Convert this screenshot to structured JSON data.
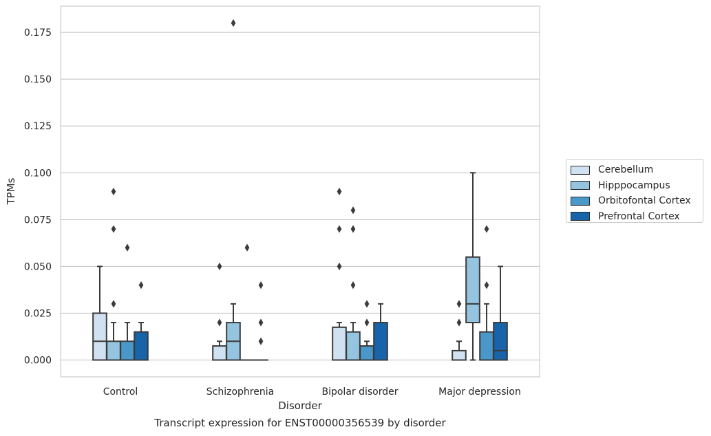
{
  "chart_data": {
    "type": "box",
    "xlabel": "Disorder",
    "ylabel": "TPMs",
    "caption": "Transcript expression for ENST00000356539 by disorder",
    "categories": [
      "Control",
      "Schizophrenia",
      "Bipolar disorder",
      "Major depression"
    ],
    "ylim": [
      -0.009,
      0.189
    ],
    "yticks": [
      "0.000",
      "0.025",
      "0.050",
      "0.075",
      "0.100",
      "0.125",
      "0.150",
      "0.175"
    ],
    "grid": "horizontal",
    "legend_placement": "right",
    "series": [
      {
        "name": "Cerebellum",
        "color": "#d0e1f2",
        "boxes": [
          {
            "category": "Control",
            "whislo": 0.0,
            "q1": 0.0,
            "median": 0.01,
            "q3": 0.025,
            "whishi": 0.05,
            "fliers": []
          },
          {
            "category": "Schizophrenia",
            "whislo": 0.0,
            "q1": 0.0,
            "median": 0.0,
            "q3": 0.0075,
            "whishi": 0.01,
            "fliers": [
              0.02,
              0.05
            ]
          },
          {
            "category": "Bipolar disorder",
            "whislo": 0.0,
            "q1": 0.0,
            "median": 0.0,
            "q3": 0.0175,
            "whishi": 0.02,
            "fliers": [
              0.05,
              0.07,
              0.09
            ]
          },
          {
            "category": "Major depression",
            "whislo": 0.0,
            "q1": 0.0,
            "median": 0.0,
            "q3": 0.005,
            "whishi": 0.01,
            "fliers": [
              0.02,
              0.03
            ]
          }
        ]
      },
      {
        "name": "Hipppocampus",
        "color": "#94c4df",
        "boxes": [
          {
            "category": "Control",
            "whislo": 0.0,
            "q1": 0.0,
            "median": 0.0,
            "q3": 0.01,
            "whishi": 0.02,
            "fliers": [
              0.03,
              0.07,
              0.09
            ]
          },
          {
            "category": "Schizophrenia",
            "whislo": 0.0,
            "q1": 0.0,
            "median": 0.01,
            "q3": 0.02,
            "whishi": 0.03,
            "fliers": [
              0.18
            ]
          },
          {
            "category": "Bipolar disorder",
            "whislo": 0.0,
            "q1": 0.0,
            "median": 0.0,
            "q3": 0.015,
            "whishi": 0.02,
            "fliers": [
              0.04,
              0.07,
              0.08
            ]
          },
          {
            "category": "Major depression",
            "whislo": 0.0,
            "q1": 0.02,
            "median": 0.03,
            "q3": 0.055,
            "whishi": 0.1,
            "fliers": []
          }
        ]
      },
      {
        "name": "Orbitofontal Cortex",
        "color": "#4a98c9",
        "boxes": [
          {
            "category": "Control",
            "whislo": 0.0,
            "q1": 0.0,
            "median": 0.0,
            "q3": 0.01,
            "whishi": 0.02,
            "fliers": [
              0.06
            ]
          },
          {
            "category": "Schizophrenia",
            "whislo": 0.0,
            "q1": 0.0,
            "median": 0.0,
            "q3": 0.0,
            "whishi": 0.0,
            "fliers": [
              0.06
            ]
          },
          {
            "category": "Bipolar disorder",
            "whislo": 0.0,
            "q1": 0.0,
            "median": 0.0,
            "q3": 0.0075,
            "whishi": 0.01,
            "fliers": [
              0.02,
              0.03
            ]
          },
          {
            "category": "Major depression",
            "whislo": 0.0,
            "q1": 0.0,
            "median": 0.0,
            "q3": 0.015,
            "whishi": 0.03,
            "fliers": [
              0.04,
              0.07
            ]
          }
        ]
      },
      {
        "name": "Prefrontal Cortex",
        "color": "#1764ab",
        "boxes": [
          {
            "category": "Control",
            "whislo": 0.0,
            "q1": 0.0,
            "median": 0.0,
            "q3": 0.015,
            "whishi": 0.02,
            "fliers": [
              0.04
            ]
          },
          {
            "category": "Schizophrenia",
            "whislo": 0.0,
            "q1": 0.0,
            "median": 0.0,
            "q3": 0.0,
            "whishi": 0.0,
            "fliers": [
              0.01,
              0.02,
              0.04
            ]
          },
          {
            "category": "Bipolar disorder",
            "whislo": 0.0,
            "q1": 0.0,
            "median": 0.0,
            "q3": 0.02,
            "whishi": 0.03,
            "fliers": []
          },
          {
            "category": "Major depression",
            "whislo": 0.0,
            "q1": 0.0,
            "median": 0.005,
            "q3": 0.02,
            "whishi": 0.05,
            "fliers": []
          }
        ]
      }
    ]
  }
}
